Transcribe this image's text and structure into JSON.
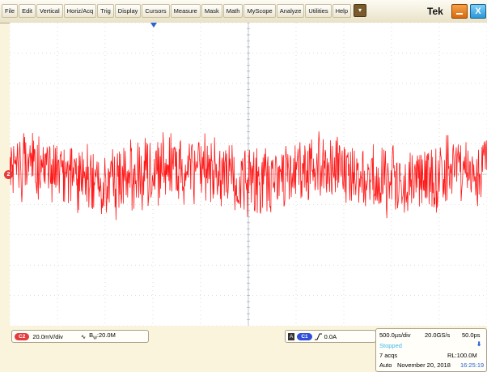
{
  "menu": [
    "File",
    "Edit",
    "Vertical",
    "Horiz/Acq",
    "Trig",
    "Display",
    "Cursors",
    "Measure",
    "Mask",
    "Math",
    "MyScope",
    "Analyze",
    "Utilities",
    "Help"
  ],
  "menu_dropdown_icon": "dropdown-arrow-icon",
  "brand": "Tek",
  "window_buttons": {
    "minimize": "minimize-icon",
    "close": "X"
  },
  "waveform": {
    "channel": "2",
    "color": "#ff1a1a"
  },
  "channel_readout": {
    "channel": "C2",
    "scale": "20.0mV/div",
    "bandwidth_prefix": "B",
    "bandwidth_sub": "W",
    "bandwidth": ":20.0M"
  },
  "trigger_readout": {
    "mode": "A",
    "source": "C1",
    "slope_icon": "rising-edge-icon",
    "level": "0.0A"
  },
  "acquisition": {
    "timebase": "500.0µs/div",
    "sample_rate": "20.0GS/s",
    "resolution": "50.0ps",
    "state": "Stopped",
    "acqs": "7 acqs",
    "record_length": "RL:100.0M",
    "mode": "Auto",
    "date": "November 20, 2018",
    "time": "16:25:19"
  },
  "colors": {
    "channel2": "#e43b3b",
    "trigger_blue": "#2a62d4",
    "stopped": "#3fb8ee"
  }
}
